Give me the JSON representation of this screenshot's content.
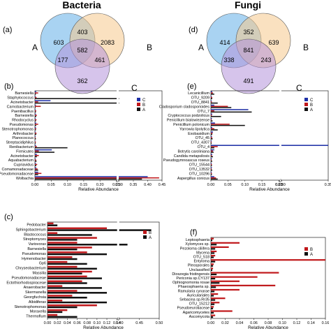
{
  "colors": {
    "A": "#111111",
    "B": "#c0181b",
    "C": "#1d2fa6",
    "venn_A": "#62aee8",
    "venn_B": "#f6c98d",
    "venn_C": "#b493da"
  },
  "chart_data": [
    {
      "id": "a",
      "type": "venn",
      "panel_label": "(a)",
      "title": "Bacteria",
      "set_labels": [
        "A",
        "B",
        "C"
      ],
      "regions": {
        "A_only": 603,
        "B_only": 2083,
        "C_only": 362,
        "AB_only": 403,
        "AC_only": 177,
        "BC_only": 461,
        "ABC": 582
      }
    },
    {
      "id": "d",
      "type": "venn",
      "panel_label": "(d)",
      "title": "Fungi",
      "set_labels": [
        "A",
        "B",
        "C"
      ],
      "regions": {
        "A_only": 414,
        "B_only": 639,
        "C_only": 491,
        "AB_only": 352,
        "AC_only": 338,
        "BC_only": 243,
        "ABC": 841
      }
    },
    {
      "id": "b",
      "type": "bar",
      "orientation": "horizontal",
      "panel_label": "(b)",
      "xlabel": "Relative Abundance",
      "x_ticks": [
        "0.00",
        "0.05",
        "0.10",
        "0.15",
        "0.20",
        "0.25",
        "0.30",
        "0.35",
        "0.40",
        "0.45"
      ],
      "x_break_after": 0.25,
      "legend": [
        "C",
        "B",
        "A"
      ],
      "legend_position": "top-right",
      "categories": [
        "Barnesiella",
        "Staphylococcus",
        "Acinetobacter",
        "Carnobacterium",
        "Paenibacillus",
        "Barnesiella",
        "Rhodocyclus",
        "Pseudomonas",
        "Stenotrophomonas",
        "Arthrobacter",
        "Planococcus",
        "Streptacidiphilus",
        "Renibacterium",
        "Firmicutes",
        "Acinetobacter",
        "Aquabacterium",
        "Cupriavidus",
        "Comamonadaceae",
        "Pseudomonadaceae",
        "Wolbachia"
      ],
      "series": [
        {
          "name": "C",
          "values": [
            0.004,
            0.002,
            0.048,
            0.003,
            0.002,
            0.003,
            0.002,
            0.004,
            0.003,
            0.002,
            0.002,
            0.001,
            0.003,
            0.052,
            0.006,
            0.002,
            0.003,
            0.004,
            0.01,
            0.4
          ]
        },
        {
          "name": "B",
          "values": [
            0.01,
            0.005,
            0.01,
            0.018,
            0.004,
            0.006,
            0.005,
            0.01,
            0.004,
            0.005,
            0.002,
            0.003,
            0.006,
            0.012,
            0.012,
            0.004,
            0.007,
            0.008,
            0.02,
            0.44
          ]
        },
        {
          "name": "A",
          "values": [
            0.003,
            0.3,
            0.3,
            0.002,
            0.003,
            0.004,
            0.003,
            0.004,
            0.003,
            0.004,
            0.003,
            0.002,
            0.1,
            0.06,
            0.006,
            0.005,
            0.004,
            0.01,
            0.01,
            0.38
          ]
        }
      ]
    },
    {
      "id": "e",
      "type": "bar",
      "orientation": "horizontal",
      "panel_label": "(e)",
      "xlabel": "Relative Abundance",
      "x_ticks": [
        "0.00",
        "0.05",
        "0.10",
        "0.15",
        "0.20",
        "0.25",
        "0.30",
        "0.35"
      ],
      "x_break_after": 0.2,
      "legend": [
        "C",
        "B",
        "A"
      ],
      "legend_position": "top-right",
      "categories": [
        "Lecanicillium",
        "OTU_9209",
        "OTU_8841",
        "Cladosporium cladosporioides",
        "OTU_7",
        "Cryptococcus podzolicus",
        "Penicillium bialowiezense",
        "Penicillium polonicum",
        "Yarrowia lipolytica",
        "Exobasidium",
        "OTU_45",
        "OTU_4307",
        "OTU_4",
        "Botrytis caroliniana",
        "Candida metapsilosis",
        "Pseudogymnoascus roseus",
        "OTU_15544",
        "OTU_13532",
        "OTU_10296",
        "Aspergillus conicus"
      ],
      "series": [
        {
          "name": "C",
          "values": [
            0.004,
            0.002,
            0.002,
            0.01,
            0.11,
            0.004,
            0.003,
            0.012,
            0.004,
            0.006,
            0.003,
            0.002,
            0.35,
            0.01,
            0.004,
            0.003,
            0.002,
            0.003,
            0.002,
            0.01
          ]
        },
        {
          "name": "B",
          "values": [
            0.006,
            0.004,
            0.003,
            0.05,
            0.01,
            0.003,
            0.002,
            0.055,
            0.01,
            0.005,
            0.004,
            0.002,
            0.02,
            0.006,
            0.003,
            0.002,
            0.003,
            0.002,
            0.003,
            0.015
          ]
        },
        {
          "name": "A",
          "values": [
            0.01,
            0.004,
            0.02,
            0.06,
            0.12,
            0.03,
            0.005,
            0.1,
            0.02,
            0.004,
            0.005,
            0.002,
            0.01,
            0.008,
            0.006,
            0.004,
            0.003,
            0.004,
            0.003,
            0.02
          ]
        }
      ]
    },
    {
      "id": "c",
      "type": "bar",
      "orientation": "horizontal",
      "panel_label": "(c)",
      "xlabel": "Relative Abundance",
      "x_ticks": [
        "0.00",
        "0.02",
        "0.04",
        "0.06",
        "0.08",
        "0.10",
        "0.12",
        "0.14",
        "0.40",
        "0.45",
        "0.50"
      ],
      "x_break_after": 0.14,
      "legend": [
        "B",
        "A"
      ],
      "legend_position": "top-right",
      "categories": [
        "Pedobacter",
        "Sphingobacterium",
        "Blastococcus",
        "Streptomyces",
        "Variovorax",
        "Barnesiella",
        "Pseudomonas",
        "Hymenobacter",
        "Gp6",
        "Chryseobacterium",
        "Massilia",
        "Pseudomonadaceae",
        "Ectothiorhodospiraceae",
        "Anaerobacter",
        "Skermanella",
        "Georgfuchsia",
        "Albidiferax",
        "Stenotrophomonas",
        "Moraxella",
        "Thermoflum"
      ],
      "series": [
        {
          "name": "B",
          "values": [
            0.012,
            0.12,
            0.02,
            0.1,
            0.06,
            0.09,
            0.08,
            0.05,
            0.04,
            0.06,
            0.09,
            0.08,
            0.07,
            0.03,
            0.06,
            0.05,
            0.03,
            0.1,
            0.04,
            0.02
          ]
        },
        {
          "name": "A",
          "values": [
            0.02,
            0.48,
            0.09,
            0.06,
            0.42,
            0.06,
            0.12,
            0.06,
            0.08,
            0.1,
            0.07,
            0.11,
            0.08,
            0.11,
            0.12,
            0.08,
            0.12,
            0.06,
            0.03,
            0.06
          ]
        }
      ]
    },
    {
      "id": "f",
      "type": "bar",
      "orientation": "horizontal",
      "panel_label": "(f)",
      "xlabel": "Relative Abundance",
      "x_ticks": [
        "0.00",
        "0.02",
        "0.04",
        "0.06",
        "0.08",
        "0.10",
        "0.12",
        "0.14",
        "0.16"
      ],
      "legend": [
        "B",
        "A"
      ],
      "legend_position": "top-right",
      "categories": [
        "Leptosphaeria",
        "Xylomyces sp.",
        "Pezoloma ciliifera",
        "Mycena",
        "OTU_518",
        "Entyloma",
        "Pleosporales",
        "Unclassified",
        "Dioszegia fristingensis",
        "Periconia sp.CY137",
        "Ophiognomonia rosae",
        "Phaeosphaeria sp.",
        "Ramularia cynarae",
        "Auriculariales",
        "Sebacina sp.Rr35",
        "OTU_15212",
        "Pseudoeurotiaceae",
        "Agaricomycetes",
        "Ascomycota"
      ],
      "series": [
        {
          "name": "B",
          "values": [
            0.004,
            0.04,
            0.025,
            0.008,
            0.006,
            0.16,
            0.004,
            0.003,
            0.095,
            0.065,
            0.04,
            0.09,
            0.04,
            0.01,
            0.02,
            0.012,
            0.004,
            0.03,
            0.006
          ]
        },
        {
          "name": "A",
          "values": [
            0.002,
            0.008,
            0.006,
            0.005,
            0.004,
            0.006,
            0.003,
            0.002,
            0.008,
            0.006,
            0.012,
            0.007,
            0.005,
            0.004,
            0.006,
            0.005,
            0.003,
            0.004,
            0.003
          ]
        }
      ]
    }
  ]
}
